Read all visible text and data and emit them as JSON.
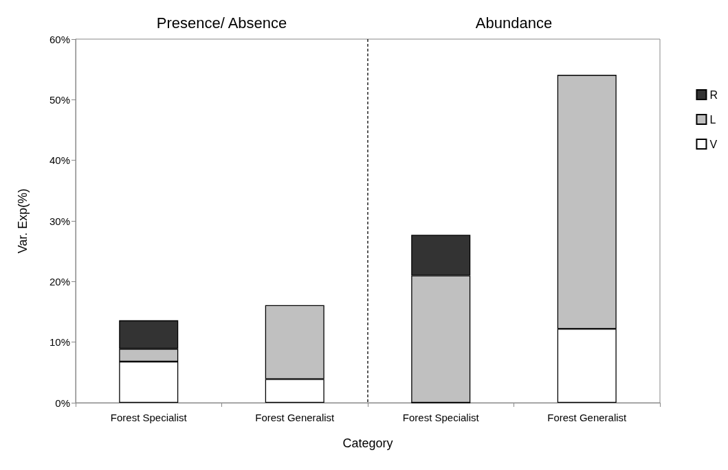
{
  "chart_data": {
    "type": "bar",
    "stacked": true,
    "xlabel": "Category",
    "ylabel": "Var. Exp(%)",
    "annotations": [
      "Presence/ Absence",
      "Abundance"
    ],
    "categories": [
      "Forest Specialist",
      "Forest Generalist",
      "Forest Specialist",
      "Forest Generalist"
    ],
    "series": [
      {
        "name": "V",
        "color": "#ffffff",
        "values": [
          6.8,
          3.9,
          0,
          12.2
        ]
      },
      {
        "name": "L",
        "color": "#c0c0c0",
        "values": [
          2.1,
          12.2,
          21.0,
          41.9
        ]
      },
      {
        "name": "R",
        "color": "#333333",
        "values": [
          4.7,
          null,
          6.7,
          null
        ]
      }
    ],
    "ylim": [
      0,
      60
    ],
    "yticks": [
      {
        "value": 0,
        "label": "0%"
      },
      {
        "value": 10,
        "label": "10%"
      },
      {
        "value": 20,
        "label": "20%"
      },
      {
        "value": 30,
        "label": "30%"
      },
      {
        "value": 40,
        "label": "40%"
      },
      {
        "value": 50,
        "label": "50%"
      },
      {
        "value": 60,
        "label": "60%"
      }
    ],
    "grid": false,
    "legend": "right"
  }
}
